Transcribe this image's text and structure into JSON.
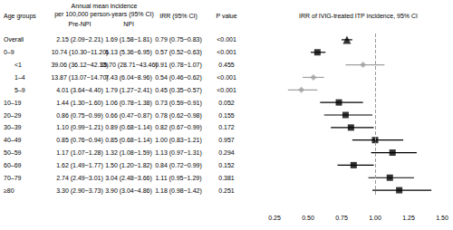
{
  "chart_data": {
    "type": "forest",
    "title": "IRR of IVIG-treated ITP incidence, 95% CI",
    "header": {
      "age": "Age groups",
      "group": "Annual mean incidence",
      "group_sub": "per 100,000 person-years (95% CI)",
      "pre": "Pre-NPI",
      "npi": "NPI",
      "irr": "IRR (95% CI)",
      "p": "P value"
    },
    "rows": [
      {
        "age": "Overall",
        "pre_npi": "2.15 (2.09~2.21)",
        "npi": "1.69 (1.58~1.81)",
        "irr_ci": "0.79 (0.75~0.83)",
        "p": "<0.001",
        "irr": 0.79,
        "lower": 0.75,
        "upper": 0.83,
        "marker": "triangle",
        "color": "#000000"
      },
      {
        "age": "0–9",
        "pre_npi": "10.74 (10.30~11.20)",
        "npi": "6.13 (5.36~6.95)",
        "irr_ci": "0.57 (0.52~0.63)",
        "p": "<0.001",
        "irr": 0.57,
        "lower": 0.52,
        "upper": 0.63,
        "marker": "square",
        "color": "#000000"
      },
      {
        "age": "<1",
        "pre_npi": "39.06 (36.12~42.13)",
        "npi": "35.70 (28.71~43.46)",
        "irr_ci": "0.91 (0.78~1.07)",
        "p": "0.455",
        "irr": 0.91,
        "lower": 0.78,
        "upper": 1.07,
        "marker": "diamond",
        "color": "#a0a0a0"
      },
      {
        "age": "1–4",
        "pre_npi": "13.87 (13.07~14.70)",
        "npi": "7.43 (6.04~8.96)",
        "irr_ci": "0.54 (0.46~0.62)",
        "p": "<0.001",
        "irr": 0.54,
        "lower": 0.46,
        "upper": 0.62,
        "marker": "diamond",
        "color": "#a0a0a0"
      },
      {
        "age": "5–9",
        "pre_npi": "4.01 (3.64~4.40)",
        "npi": "1.79 (1.27~2.41)",
        "irr_ci": "0.45 (0.35~0.57)",
        "p": "<0.001",
        "irr": 0.45,
        "lower": 0.35,
        "upper": 0.57,
        "marker": "diamond",
        "color": "#a0a0a0"
      },
      {
        "age": "10–19",
        "pre_npi": "1.44 (1.30~1.60)",
        "npi": "1.06 (0.78~1.38)",
        "irr_ci": "0.73 (0.59~0.91)",
        "p": "0.052",
        "irr": 0.73,
        "lower": 0.59,
        "upper": 0.91,
        "marker": "square",
        "color": "#000000"
      },
      {
        "age": "20–29",
        "pre_npi": "0.86 (0.75~0.99)",
        "npi": "0.66 (0.47~0.87)",
        "irr_ci": "0.78 (0.62~0.98)",
        "p": "0.155",
        "irr": 0.78,
        "lower": 0.62,
        "upper": 0.98,
        "marker": "square",
        "color": "#000000"
      },
      {
        "age": "30–39",
        "pre_npi": "1.10 (0.99~1.21)",
        "npi": "0.89 (0.68~1.14)",
        "irr_ci": "0.82 (0.67~0.99)",
        "p": "0.172",
        "irr": 0.82,
        "lower": 0.67,
        "upper": 0.99,
        "marker": "square",
        "color": "#000000"
      },
      {
        "age": "40–49",
        "pre_npi": "0.85 (0.76~0.94)",
        "npi": "0.85 (0.68~1.14)",
        "irr_ci": "1.00 (0.83~1.21)",
        "p": "0.957",
        "irr": 1.0,
        "lower": 0.83,
        "upper": 1.21,
        "marker": "square",
        "color": "#000000"
      },
      {
        "age": "50–59",
        "pre_npi": "1.17 (1.07~1.28)",
        "npi": "1.32 (1.08~1.59)",
        "irr_ci": "1.13 (0.97~1.31)",
        "p": "0.294",
        "irr": 1.13,
        "lower": 0.97,
        "upper": 1.31,
        "marker": "square",
        "color": "#000000"
      },
      {
        "age": "60–69",
        "pre_npi": "1.62 (1.49~1.77)",
        "npi": "1.50 (1.20~1.82)",
        "irr_ci": "0.84 (0.72~0.99)",
        "p": "0.152",
        "irr": 0.84,
        "lower": 0.72,
        "upper": 0.99,
        "marker": "square",
        "color": "#000000"
      },
      {
        "age": "70–79",
        "pre_npi": "2.74 (2.49~3.01)",
        "npi": "3.04 (2.48~3.66)",
        "irr_ci": "1.11 (0.95~1.29)",
        "p": "0.381",
        "irr": 1.11,
        "lower": 0.95,
        "upper": 1.29,
        "marker": "square",
        "color": "#000000"
      },
      {
        "age": "≥80",
        "pre_npi": "3.30 (2.90~3.73)",
        "npi": "3.90 (3.04~4.86)",
        "irr_ci": "1.18 (0.98~1.42)",
        "p": "0.251",
        "irr": 1.18,
        "lower": 0.98,
        "upper": 1.42,
        "marker": "square",
        "color": "#000000"
      }
    ],
    "xlim": [
      0.25,
      1.5
    ],
    "xticks": [
      {
        "value": 0.25,
        "label": "0.25"
      },
      {
        "value": 0.5,
        "label": "0.50"
      },
      {
        "value": 0.75,
        "label": "0.75"
      },
      {
        "value": 1,
        "label": "1.00"
      },
      {
        "value": 1.25,
        "label": "1.25"
      },
      {
        "value": 1.5,
        "label": "1.50"
      }
    ],
    "reference": 1,
    "grid": false
  }
}
